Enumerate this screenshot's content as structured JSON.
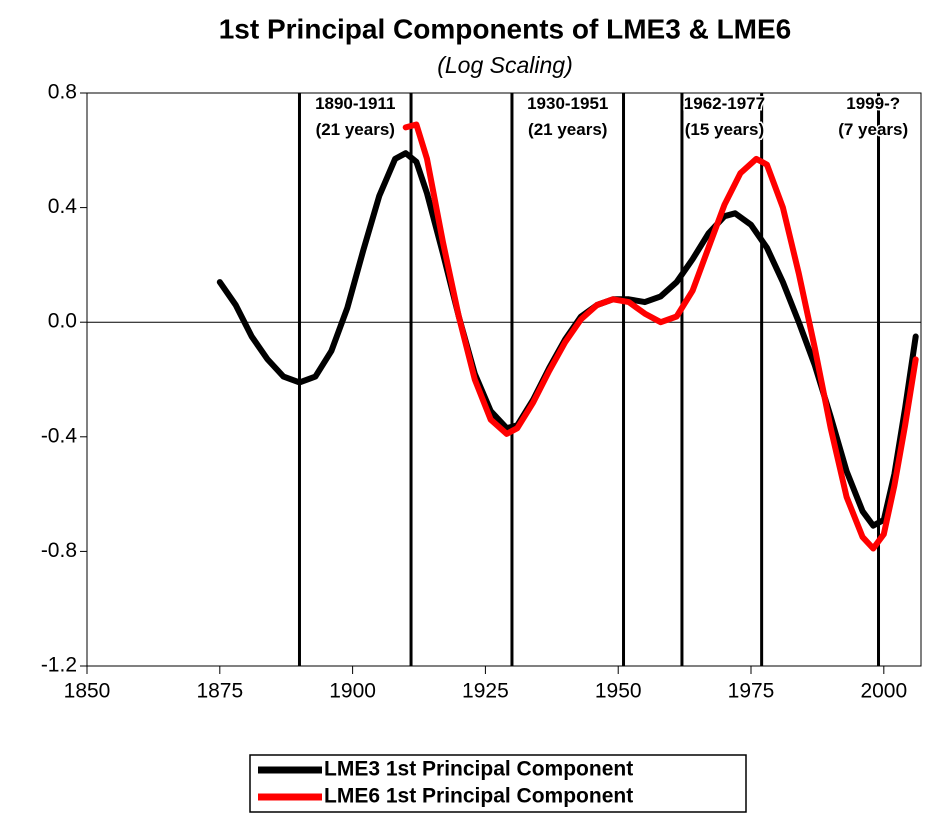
{
  "chart_data": {
    "type": "line",
    "title": "1st Principal Components of LME3 & LME6",
    "subtitle": "(Log Scaling)",
    "xlim": [
      1850,
      2007
    ],
    "xticks": [
      1850,
      1875,
      1900,
      1925,
      1950,
      1975,
      2000
    ],
    "ylim": [
      -1.2,
      0.8
    ],
    "yticks": [
      0.8,
      0.4,
      {
        "value": 0,
        "label": "0.0"
      },
      -0.4,
      -0.8,
      -1.2
    ],
    "zero_line": true,
    "vlines": [
      1890,
      1911,
      1930,
      1951,
      1962,
      1977,
      1999
    ],
    "annotations": [
      {
        "text": [
          "1890-1911",
          "(21 years)"
        ],
        "x": 1900.5,
        "y": 0.76
      },
      {
        "text": [
          "1930-1951",
          "(21 years)"
        ],
        "x": 1940.5,
        "y": 0.76
      },
      {
        "text": [
          "1962-1977",
          "(15 years)"
        ],
        "x": 1970,
        "y": 0.76
      },
      {
        "text": [
          "1999-?",
          "(7 years)"
        ],
        "x": 1998,
        "y": 0.76
      }
    ],
    "legend": "bottom",
    "series": [
      {
        "name": "LME3 1st Principal Component",
        "color": "#000000",
        "x": [
          1875,
          1878,
          1881,
          1884,
          1887,
          1890,
          1893,
          1896,
          1899,
          1902,
          1905,
          1908,
          1910,
          1912,
          1914,
          1917,
          1920,
          1923,
          1926,
          1929,
          1931,
          1934,
          1937,
          1940,
          1943,
          1946,
          1949,
          1952,
          1955,
          1958,
          1961,
          1964,
          1967,
          1970,
          1972,
          1975,
          1978,
          1981,
          1984,
          1987,
          1990,
          1993,
          1996,
          1998,
          2000,
          2002,
          2004,
          2006
        ],
        "values": [
          0.14,
          0.06,
          -0.05,
          -0.13,
          -0.19,
          -0.21,
          -0.19,
          -0.1,
          0.05,
          0.25,
          0.44,
          0.57,
          0.59,
          0.56,
          0.45,
          0.24,
          0.02,
          -0.18,
          -0.31,
          -0.37,
          -0.36,
          -0.27,
          -0.16,
          -0.06,
          0.02,
          0.06,
          0.08,
          0.08,
          0.07,
          0.09,
          0.14,
          0.22,
          0.31,
          0.37,
          0.38,
          0.34,
          0.26,
          0.14,
          0.0,
          -0.15,
          -0.33,
          -0.52,
          -0.66,
          -0.71,
          -0.69,
          -0.53,
          -0.3,
          -0.05
        ]
      },
      {
        "name": "LME6 1st Principal Component",
        "color": "#ff0000",
        "x": [
          1910,
          1912,
          1914,
          1917,
          1920,
          1923,
          1926,
          1929,
          1931,
          1934,
          1937,
          1940,
          1943,
          1946,
          1949,
          1952,
          1955,
          1958,
          1961,
          1964,
          1967,
          1970,
          1973,
          1976,
          1978,
          1981,
          1984,
          1987,
          1990,
          1993,
          1996,
          1998,
          2000,
          2002,
          2004,
          2006
        ],
        "values": [
          0.68,
          0.69,
          0.57,
          0.28,
          0.02,
          -0.2,
          -0.34,
          -0.39,
          -0.37,
          -0.28,
          -0.17,
          -0.07,
          0.01,
          0.06,
          0.08,
          0.07,
          0.03,
          0.0,
          0.02,
          0.11,
          0.26,
          0.41,
          0.52,
          0.57,
          0.55,
          0.4,
          0.17,
          -0.09,
          -0.37,
          -0.61,
          -0.75,
          -0.79,
          -0.74,
          -0.57,
          -0.36,
          -0.13
        ]
      }
    ]
  }
}
